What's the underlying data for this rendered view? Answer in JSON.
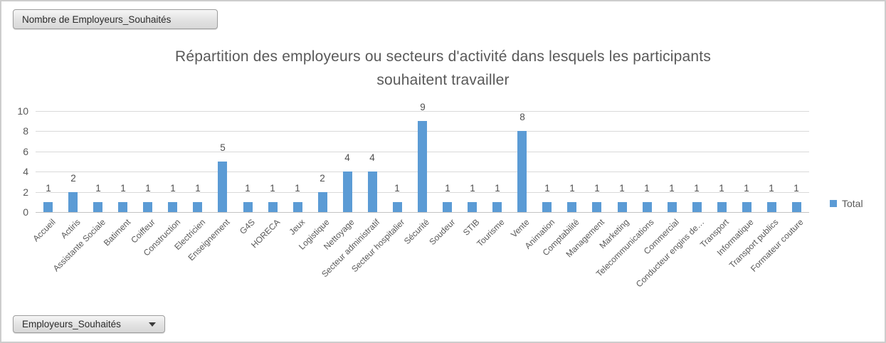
{
  "field_buttons": {
    "value_button_label": "Nombre de Employeurs_Souhaités",
    "axis_button_label": "Employeurs_Souhaités"
  },
  "chart_data": {
    "type": "bar",
    "title": "Répartition des employeurs ou secteurs d'activité dans lesquels les participants souhaitent travailler",
    "title_lines": [
      "Répartition des employeurs ou secteurs d'activité dans lesquels les participants",
      "souhaitent travailler"
    ],
    "categories": [
      "Accueil",
      "Actiris",
      "Assistante Sociale",
      "Batiment",
      "Coiffeur",
      "Construction",
      "Electricien",
      "Enseignement",
      "G4S",
      "HORECA",
      "Jeux",
      "Logistique",
      "Nettoyage",
      "Secteur administratif",
      "Secteur hospitalier",
      "Sécurité",
      "Soudeur",
      "STIB",
      "Tourisme",
      "Vente",
      "Animation",
      "Comptabilité",
      "Management",
      "Marketing",
      "Telecommunications",
      "Commercial",
      "Conducteur engins de…",
      "Transport",
      "Informatique",
      "Transport publics",
      "Formateur couture"
    ],
    "values": [
      1,
      2,
      1,
      1,
      1,
      1,
      1,
      5,
      1,
      1,
      1,
      2,
      4,
      4,
      1,
      9,
      1,
      1,
      1,
      8,
      1,
      1,
      1,
      1,
      1,
      1,
      1,
      1,
      1,
      1,
      1
    ],
    "series_name": "Total",
    "xlabel": "",
    "ylabel": "",
    "ylim": [
      0,
      10
    ],
    "yticks": [
      0,
      2,
      4,
      6,
      8,
      10
    ],
    "grid": true,
    "legend_position": "right",
    "data_labels": true,
    "colors": {
      "bar": "#5b9bd5",
      "gridline": "#d9d9d9",
      "axis_text": "#595959",
      "title_text": "#595959",
      "data_label_text": "#4f4f4f"
    }
  }
}
